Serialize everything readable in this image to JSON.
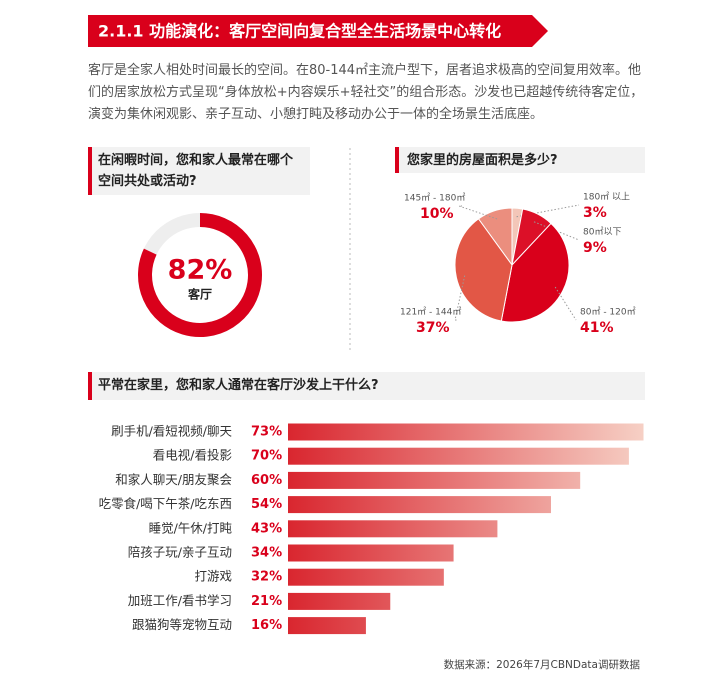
{
  "header": {
    "title": "2.1.1 功能演化：客厅空间向复合型全生活场景中心转化"
  },
  "intro": "客厅是全家人相处时间最长的空间。在80-144㎡主流户型下，居者追求极高的空间复用效率。他们的居家放松方式呈现“身体放松+内容娱乐+轻社交”的组合形态。沙发也已超越传统待客定位，演变为集休闲观影、亲子互动、小憩打盹及移动办公于一体的全场景生活底座。",
  "chart_data": [
    {
      "type": "donut",
      "title": "在闲暇时间，您和家人最常在哪个空间共处或活动?",
      "categories": [
        "客厅"
      ],
      "values": [
        82
      ],
      "value_labels": [
        "82%"
      ],
      "color": "#d9001b",
      "track_color": "#eeeeee"
    },
    {
      "type": "pie",
      "title": "您家里的房屋面积是多少?",
      "categories": [
        "145㎡ - 180㎡",
        "180㎡ 以上",
        "80㎡以下",
        "80㎡ - 120㎡",
        "121㎡ - 144㎡"
      ],
      "values": [
        10,
        3,
        9,
        41,
        37
      ],
      "value_labels": [
        "10%",
        "3%",
        "9%",
        "41%",
        "37%"
      ],
      "colors": [
        "#eb8e7e",
        "#f3c6b8",
        "#dc1028",
        "#d9001b",
        "#e25746"
      ]
    },
    {
      "type": "hbar",
      "title": "平常在家里，您和家人通常在客厅沙发上干什么?",
      "categories": [
        "刷手机/看短视频/聊天",
        "看电视/看投影",
        "和家人聊天/朋友聚会",
        "吃零食/喝下午茶/吃东西",
        "睡觉/午休/打盹",
        "陪孩子玩/亲子互动",
        "打游戏",
        "加班工作/看书学习",
        "跟猫狗等宠物互动"
      ],
      "values": [
        73,
        70,
        60,
        54,
        43,
        34,
        32,
        21,
        16
      ],
      "value_labels": [
        "73%",
        "70%",
        "60%",
        "54%",
        "43%",
        "34%",
        "32%",
        "21%",
        "16%"
      ],
      "color": "#d9262f",
      "fade_color": "#f6d0c5"
    }
  ],
  "source": "数据来源：2026年7月CBNData调研数据"
}
